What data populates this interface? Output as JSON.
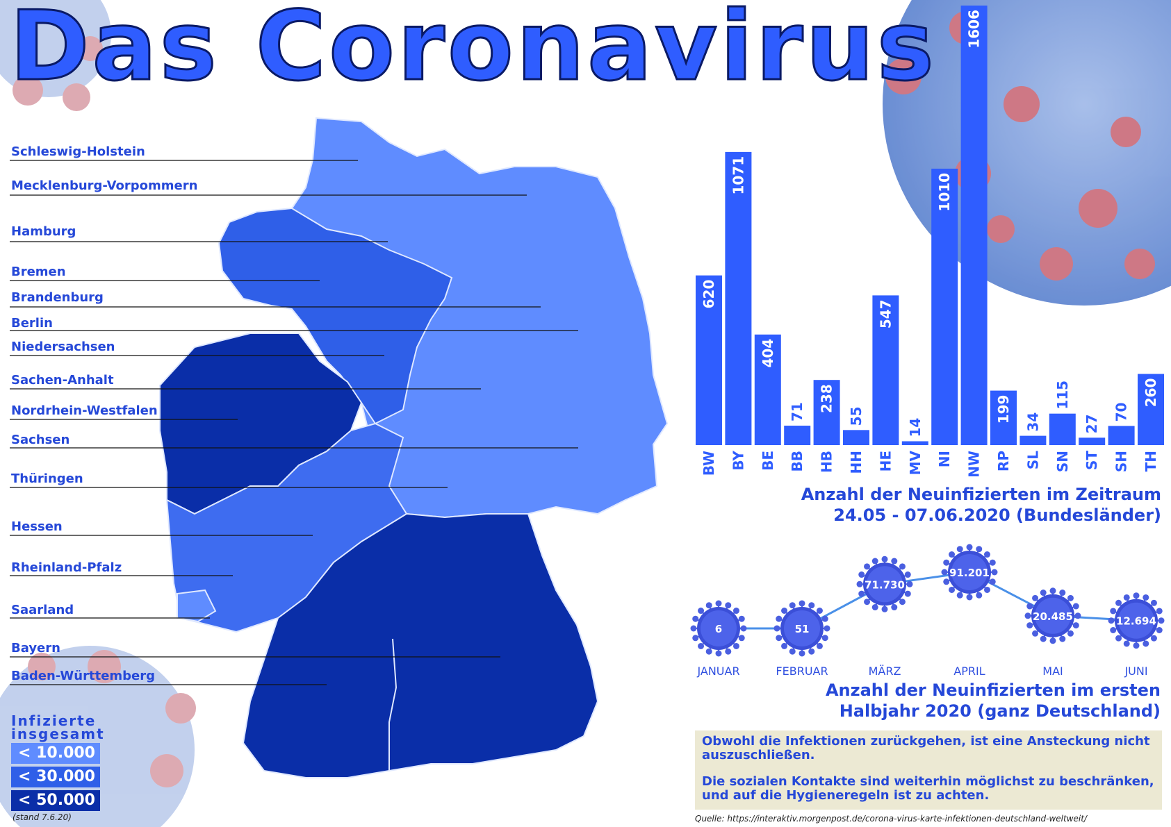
{
  "title": "Das Coronavirus",
  "regions": [
    "Schleswig-Holstein",
    "Mecklenburg-Vorpommern",
    "Hamburg",
    "Bremen",
    "Brandenburg",
    "Berlin",
    "Niedersachsen",
    "Sachen-Anhalt",
    "Nordrhein-Westfalen",
    "Sachsen",
    "Thüringen",
    "Hessen",
    "Rheinland-Pfalz",
    "Saarland",
    "Bayern",
    "Baden-Württemberg"
  ],
  "legend": {
    "title_line1": "Infizierte",
    "title_line2": "insgesamt",
    "items": [
      {
        "label": "< 10.000",
        "color": "#5f8cff"
      },
      {
        "label": "< 30.000",
        "color": "#2f5fe8"
      },
      {
        "label": "< 50.000",
        "color": "#0a2ea8"
      }
    ],
    "stand": "(stand 7.6.20)"
  },
  "map_colors": {
    "light": "#5f8cff",
    "medium": "#2f5fe8",
    "dark": "#0a2ea8"
  },
  "chart_data": [
    {
      "type": "bar",
      "categories": [
        "BW",
        "BY",
        "BE",
        "BB",
        "HB",
        "HH",
        "HE",
        "MV",
        "NI",
        "NW",
        "RP",
        "SL",
        "SN",
        "ST",
        "SH",
        "TH"
      ],
      "values": [
        620,
        1071,
        404,
        71,
        238,
        55,
        547,
        14,
        1010,
        1606,
        199,
        34,
        115,
        27,
        70,
        260
      ],
      "title_line1": "Anzahl der Neuinfizierten im Zeitraum",
      "title_line2": "24.05 - 07.06.2020 (Bundesländer)",
      "bar_color": "#2f5dff"
    },
    {
      "type": "line",
      "categories": [
        "JANUAR",
        "FEBRUAR",
        "MÄRZ",
        "APRIL",
        "MAI",
        "JUNI"
      ],
      "values": [
        6,
        51,
        71730,
        91201,
        20485,
        12694
      ],
      "value_labels": [
        "6",
        "51",
        "71.730",
        "91.201",
        "20.485",
        "12.694"
      ],
      "title_line1": "Anzahl der Neuinfizierten im ersten",
      "title_line2": "Halbjahr 2020 (ganz Deutschland)",
      "line_color": "#4a90e8"
    }
  ],
  "note": {
    "p1": "Obwohl die Infektionen zurückgehen, ist eine Ansteckung nicht auszuschließen.",
    "p2": "Die sozialen Kontakte sind weiterhin möglichst zu beschränken, und auf die Hygieneregeln ist zu achten."
  },
  "source": "Quelle: https://interaktiv.morgenpost.de/corona-virus-karte-infektionen-deutschland-weltweit/"
}
